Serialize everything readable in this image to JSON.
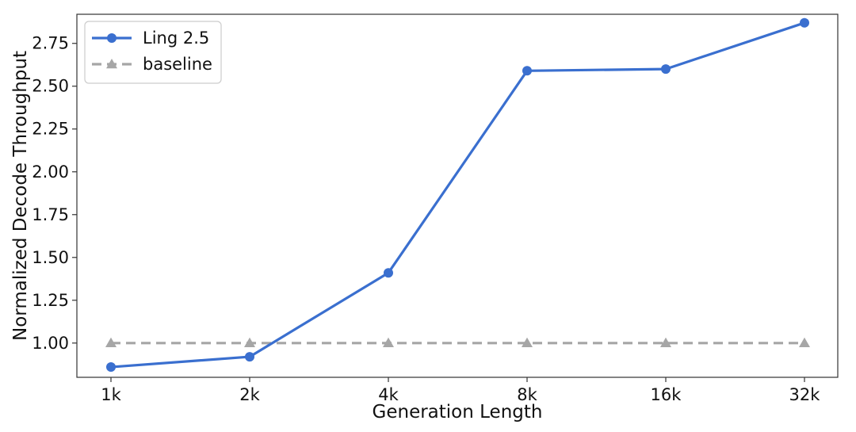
{
  "chart_data": {
    "type": "line",
    "title": "",
    "xlabel": "Generation Length",
    "ylabel": "Normalized Decode Throughput",
    "categories": [
      "1k",
      "2k",
      "4k",
      "8k",
      "16k",
      "32k"
    ],
    "ylim": [
      0.8,
      2.92
    ],
    "yticks": [
      1.0,
      1.25,
      1.5,
      1.75,
      2.0,
      2.25,
      2.5,
      2.75
    ],
    "ytick_labels": [
      "1.00",
      "1.25",
      "1.50",
      "1.75",
      "2.00",
      "2.25",
      "2.50",
      "2.75"
    ],
    "grid": false,
    "legend_position": "top-left",
    "series": [
      {
        "name": "Ling 2.5",
        "values": [
          0.86,
          0.92,
          1.41,
          2.59,
          2.6,
          2.87
        ],
        "color": "#3a6fcf",
        "line": "solid",
        "marker": "circle"
      },
      {
        "name": "baseline",
        "values": [
          1.0,
          1.0,
          1.0,
          1.0,
          1.0,
          1.0
        ],
        "color": "#a6a6a6",
        "line": "dashed",
        "marker": "triangle"
      }
    ]
  }
}
